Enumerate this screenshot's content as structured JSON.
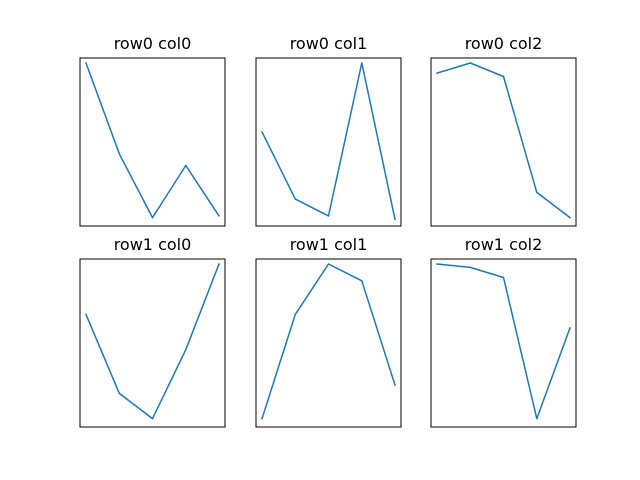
{
  "chart_data": [
    {
      "type": "line",
      "title": "row0 col0",
      "x": [
        0,
        1,
        2,
        3,
        4
      ],
      "values": [
        0.97,
        0.43,
        0.05,
        0.36,
        0.06
      ],
      "ylim": [
        0,
        1
      ],
      "xticks": false,
      "yticks": false,
      "grid": false,
      "color": "#1f77b4"
    },
    {
      "type": "line",
      "title": "row0 col1",
      "x": [
        0,
        1,
        2,
        3,
        4
      ],
      "values": [
        0.56,
        0.16,
        0.06,
        0.97,
        0.04
      ],
      "ylim": [
        0,
        1
      ],
      "xticks": false,
      "yticks": false,
      "grid": false,
      "color": "#1f77b4"
    },
    {
      "type": "line",
      "title": "row0 col2",
      "x": [
        0,
        1,
        2,
        3,
        4
      ],
      "values": [
        0.91,
        0.97,
        0.89,
        0.2,
        0.05
      ],
      "ylim": [
        0,
        1
      ],
      "xticks": false,
      "yticks": false,
      "grid": false,
      "color": "#1f77b4"
    },
    {
      "type": "line",
      "title": "row1 col0",
      "x": [
        0,
        1,
        2,
        3,
        4
      ],
      "values": [
        0.67,
        0.2,
        0.05,
        0.46,
        0.97
      ],
      "ylim": [
        0,
        1
      ],
      "xticks": false,
      "yticks": false,
      "grid": false,
      "color": "#1f77b4"
    },
    {
      "type": "line",
      "title": "row1 col1",
      "x": [
        0,
        1,
        2,
        3,
        4
      ],
      "values": [
        0.05,
        0.67,
        0.97,
        0.87,
        0.25
      ],
      "ylim": [
        0,
        1
      ],
      "xticks": false,
      "yticks": false,
      "grid": false,
      "color": "#1f77b4"
    },
    {
      "type": "line",
      "title": "row1 col2",
      "x": [
        0,
        1,
        2,
        3,
        4
      ],
      "values": [
        0.97,
        0.95,
        0.89,
        0.05,
        0.59
      ],
      "ylim": [
        0,
        1
      ],
      "xticks": false,
      "yticks": false,
      "grid": false,
      "color": "#1f77b4"
    }
  ]
}
